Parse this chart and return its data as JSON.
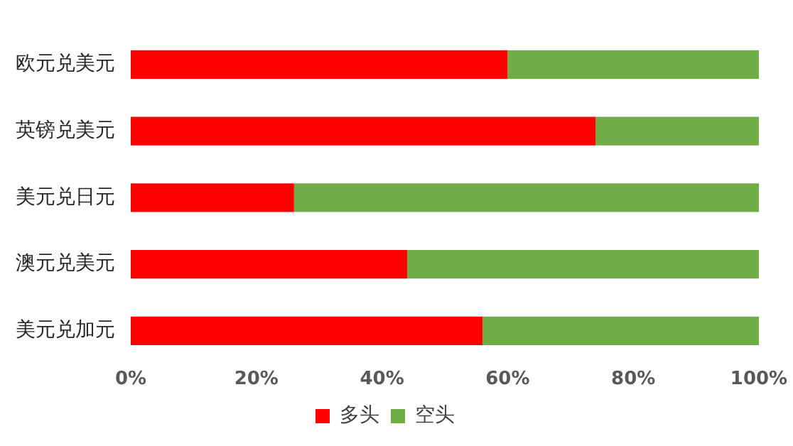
{
  "chart_data": {
    "type": "bar",
    "orientation": "horizontal",
    "stacked": true,
    "categories": [
      "欧元兑美元",
      "英镑兑美元",
      "美元兑日元",
      "澳元兑美元",
      "美元兑加元"
    ],
    "series": [
      {
        "name": "多头",
        "color": "#ff0000",
        "values": [
          60,
          74,
          26,
          44,
          56
        ]
      },
      {
        "name": "空头",
        "color": "#70ad47",
        "values": [
          40,
          26,
          74,
          56,
          44
        ]
      }
    ],
    "xlim": [
      0,
      100
    ],
    "xticks": [
      {
        "value": 0,
        "label": "0%"
      },
      {
        "value": 20,
        "label": "20%"
      },
      {
        "value": 40,
        "label": "40%"
      },
      {
        "value": 60,
        "label": "60%"
      },
      {
        "value": 80,
        "label": "80%"
      },
      {
        "value": 100,
        "label": "100%"
      }
    ],
    "grid": false,
    "legend": "bottom"
  }
}
